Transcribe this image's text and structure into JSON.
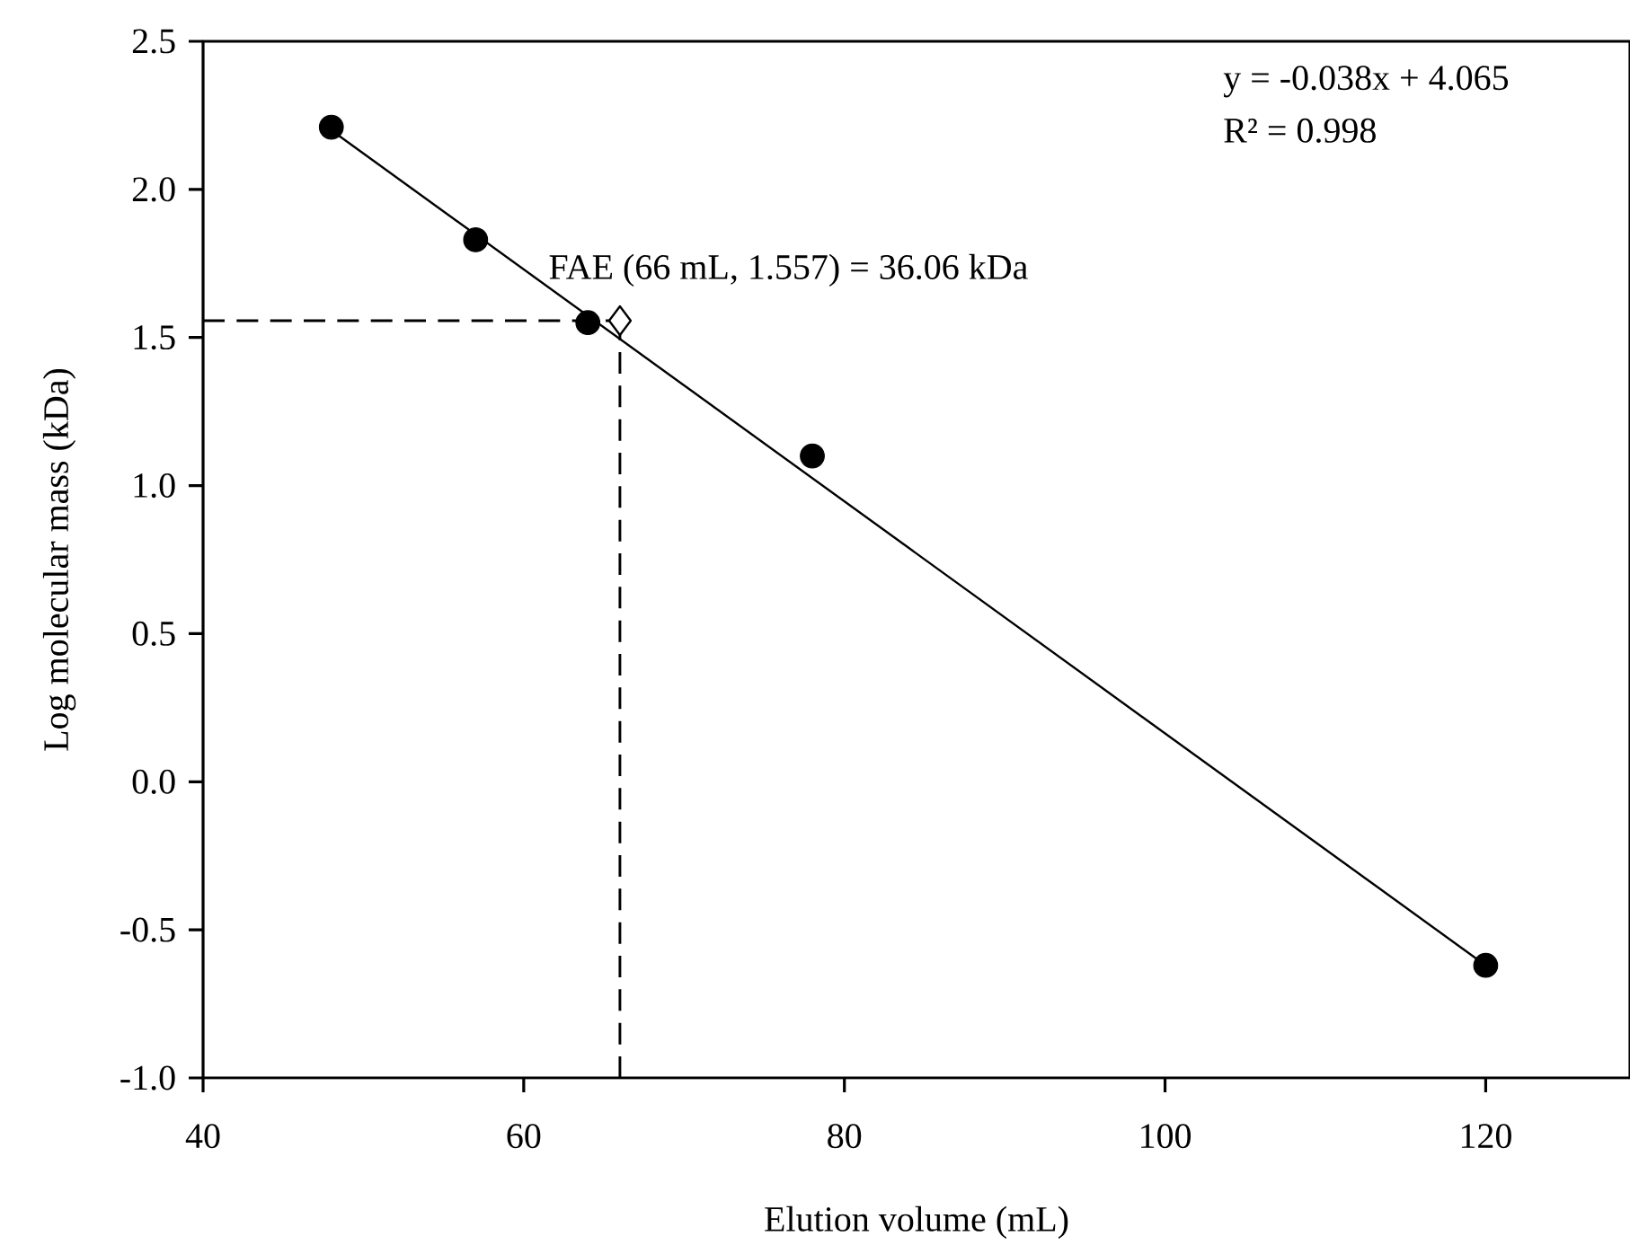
{
  "chart_data": {
    "type": "scatter",
    "xlabel": "Elution volume (mL)",
    "ylabel": "Log molecular mass (kDa)",
    "xlim": [
      40,
      129
    ],
    "xticks": [
      40,
      60,
      80,
      100,
      120
    ],
    "ylim": [
      -1.0,
      2.5
    ],
    "yticks": [
      {
        "value": -1.0,
        "label": "-1.0"
      },
      {
        "value": -0.5,
        "label": "-0.5"
      },
      {
        "value": 0.0,
        "label": "0.0"
      },
      {
        "value": 0.5,
        "label": "0.5"
      },
      {
        "value": 1.0,
        "label": "1.0"
      },
      {
        "value": 1.5,
        "label": "1.5"
      },
      {
        "value": 2.0,
        "label": "2.0"
      },
      {
        "value": 2.5,
        "label": "2.5"
      }
    ],
    "grid": false,
    "series": [
      {
        "type": "line",
        "color": "#000000",
        "x": [
          48,
          120
        ],
        "values": [
          2.2,
          -0.62
        ],
        "marker": "none"
      },
      {
        "color": "#000000",
        "x": [
          48,
          57,
          64,
          78,
          120
        ],
        "values": [
          2.21,
          1.83,
          1.55,
          1.1,
          -0.62
        ],
        "marker": "circle"
      },
      {
        "color": "#000000",
        "x": [
          66
        ],
        "values": [
          1.557
        ],
        "marker": "diamond"
      }
    ],
    "ref_lines": [
      {
        "axis": "x",
        "value": 66,
        "line_style": "dashed"
      },
      {
        "axis": "y",
        "value": 1.557,
        "line_style": "dashed"
      }
    ],
    "annotations": [
      "y = -0.038x + 4.065",
      "R² = 0.998",
      {
        "text": "FAE (66 mL, 1.557) = 36.06 kDa",
        "x": 66,
        "y": 1.557
      }
    ]
  }
}
